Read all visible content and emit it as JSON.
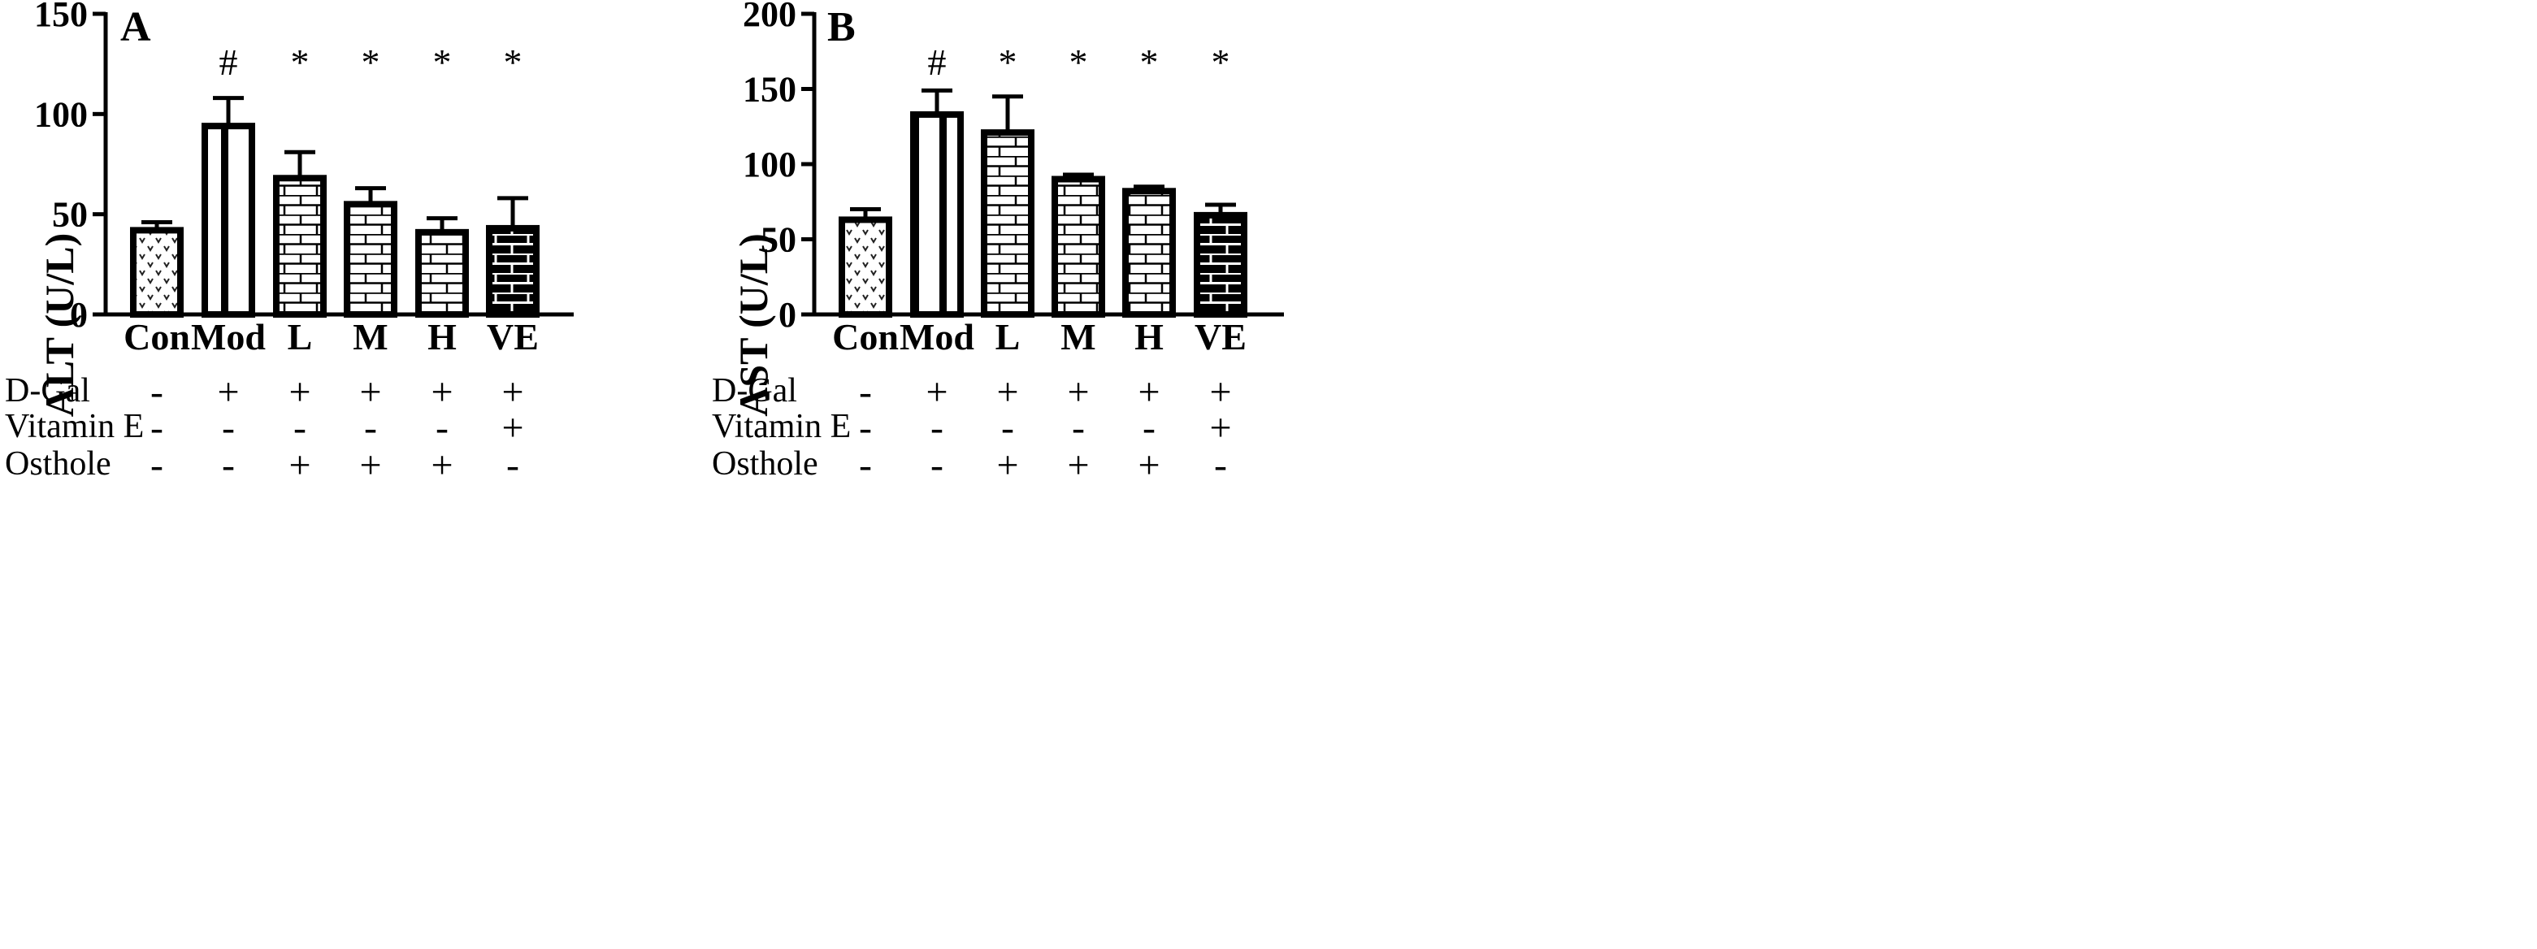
{
  "chart_data": [
    {
      "type": "bar",
      "panel": "A",
      "title": "",
      "xlabel": "",
      "ylabel": "ALT (U/L)",
      "ylim": [
        0,
        150
      ],
      "yticks": [
        "0",
        "50",
        "100",
        "150"
      ],
      "categories": [
        "Con",
        "Mod",
        "L",
        "M",
        "H",
        "VE"
      ],
      "values": [
        42,
        94,
        68,
        55,
        41,
        43
      ],
      "errors": [
        4,
        14,
        13,
        8,
        7,
        15
      ],
      "significance": [
        "",
        "#",
        "*",
        "*",
        "*",
        "*"
      ],
      "patterns": [
        "dots",
        "vstripes",
        "brick",
        "brick",
        "brick",
        "darkbrick"
      ]
    },
    {
      "type": "bar",
      "panel": "B",
      "title": "",
      "xlabel": "",
      "ylabel": "AST (U/L)",
      "ylim": [
        0,
        200
      ],
      "yticks": [
        "0",
        "50",
        "100",
        "150",
        "200"
      ],
      "categories": [
        "Con",
        "Mod",
        "L",
        "M",
        "H",
        "VE"
      ],
      "values": [
        63,
        133,
        121,
        90,
        82,
        66
      ],
      "errors": [
        7,
        16,
        24,
        3,
        3,
        7
      ],
      "significance": [
        "",
        "#",
        "*",
        "*",
        "*",
        "*"
      ],
      "patterns": [
        "dots",
        "vstripes",
        "brick",
        "brick",
        "brick",
        "darkbrick"
      ]
    }
  ],
  "treatments": [
    {
      "name": "D-Gal",
      "values": [
        "-",
        "+",
        "+",
        "+",
        "+",
        "+"
      ]
    },
    {
      "name": "Vitamin E",
      "values": [
        "-",
        "-",
        "-",
        "-",
        "-",
        "+"
      ]
    },
    {
      "name": "Osthole",
      "values": [
        "-",
        "-",
        "+",
        "+",
        "+",
        "-"
      ]
    }
  ]
}
